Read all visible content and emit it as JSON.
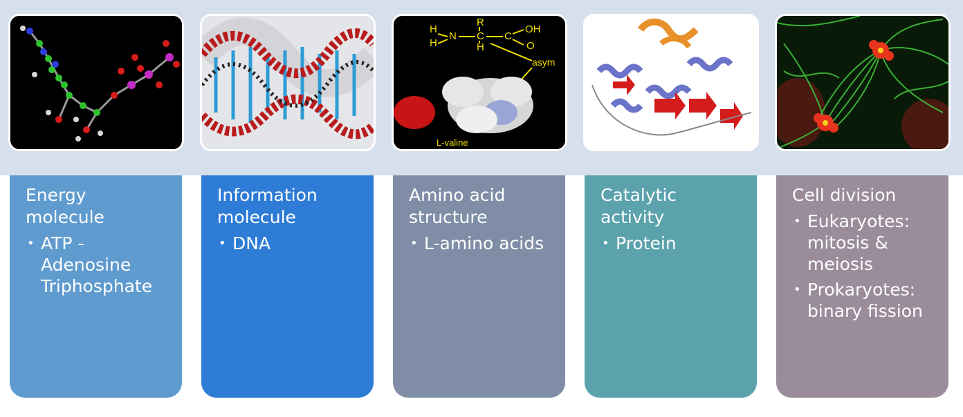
{
  "thumbnails": {
    "valine_label": "L-valine",
    "valine_pointer_text": "asym",
    "valine_formula": {
      "r": "R",
      "h_top": "H",
      "h_bottom": "H",
      "h_left_top": "H",
      "h_left_bottom": "H",
      "n": "N",
      "c": "C",
      "c2": "C",
      "o_top": "OH",
      "o_bottom": "O"
    }
  },
  "cards": [
    {
      "title": "Energy molecule",
      "color": "#5f9bcf",
      "items": [
        "ATP - Adenosine Triphosphate"
      ]
    },
    {
      "title": "Information molecule",
      "color": "#2e7cd6",
      "items": [
        "DNA"
      ]
    },
    {
      "title": "Amino acid structure",
      "color": "#7f8ea6",
      "items": [
        "L-amino acids"
      ]
    },
    {
      "title": "Catalytic activity",
      "color": "#5ba2ad",
      "items": [
        "Protein"
      ]
    },
    {
      "title": "Cell division",
      "color": "#9a8c9a",
      "items": [
        "Eukaryotes: mitosis & meiosis",
        "Prokaryotes: binary fission"
      ]
    }
  ]
}
